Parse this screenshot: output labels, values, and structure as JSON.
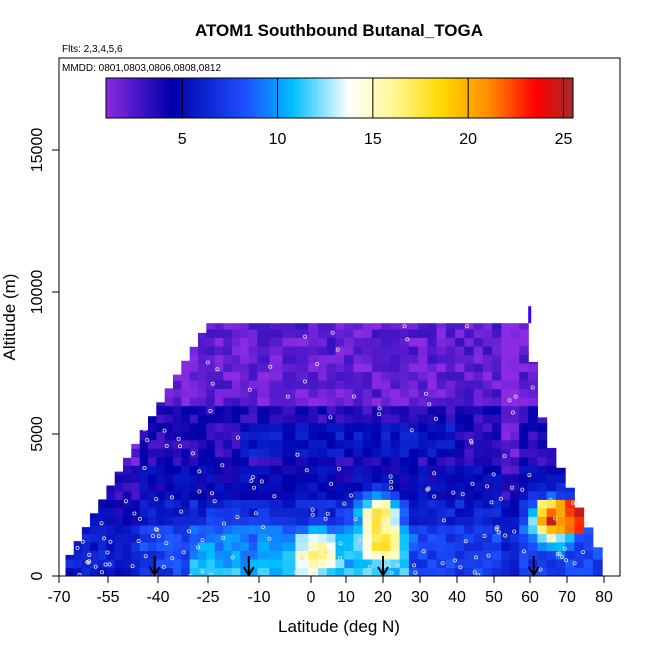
{
  "chart_data": {
    "type": "heatmap",
    "title": "ATOM1 Southbound Butanal_TOGA",
    "subtitle_flights": "Flts: 2,3,4,5,6",
    "subtitle_dates": "MMDD: 0801,0803,0806,0808,0812",
    "xlabel": "Latitude (deg N)",
    "ylabel": "Altitude (m)",
    "xlim": [
      -70,
      80
    ],
    "ylim": [
      0,
      17000
    ],
    "x_ticks": [
      -70,
      -55,
      -40,
      -25,
      -10,
      0,
      10,
      20,
      30,
      40,
      50,
      60,
      70,
      80
    ],
    "x_tick_labels": [
      "-70",
      "-55",
      "-40",
      "-25",
      "-10",
      "0",
      "10",
      "20",
      "30",
      "40",
      "50",
      "60",
      "70",
      "80"
    ],
    "y_ticks": [
      0,
      5000,
      10000,
      15000
    ],
    "y_tick_labels": [
      "0",
      "5000",
      "10000",
      "15000"
    ],
    "colorbar": {
      "range": [
        1,
        25.5
      ],
      "ticks": [
        5,
        10,
        15,
        20,
        25
      ],
      "tick_labels": [
        "5",
        "10",
        "15",
        "20",
        "25"
      ],
      "colors": [
        "#8a2be2",
        "#0000aa",
        "#1e90ff",
        "#00bfff",
        "#ffffff",
        "#fff68f",
        "#ffd700",
        "#ff8c00",
        "#ff0000",
        "#a52a2a"
      ]
    },
    "profile_arrows_lat": [
      -41,
      -13,
      20,
      61
    ],
    "top_boundary": [
      [
        -68,
        500
      ],
      [
        -25,
        8900
      ],
      [
        59,
        8900
      ],
      [
        64,
        5000
      ],
      [
        79,
        800
      ]
    ],
    "hot_spots": [
      {
        "lat": 20,
        "alt": 1200,
        "value": 19
      },
      {
        "lat": 66,
        "alt": 2000,
        "value": 24
      },
      {
        "lat": 2,
        "alt": 800,
        "value": 17
      },
      {
        "lat": 19,
        "alt": 2200,
        "value": 18
      }
    ]
  }
}
